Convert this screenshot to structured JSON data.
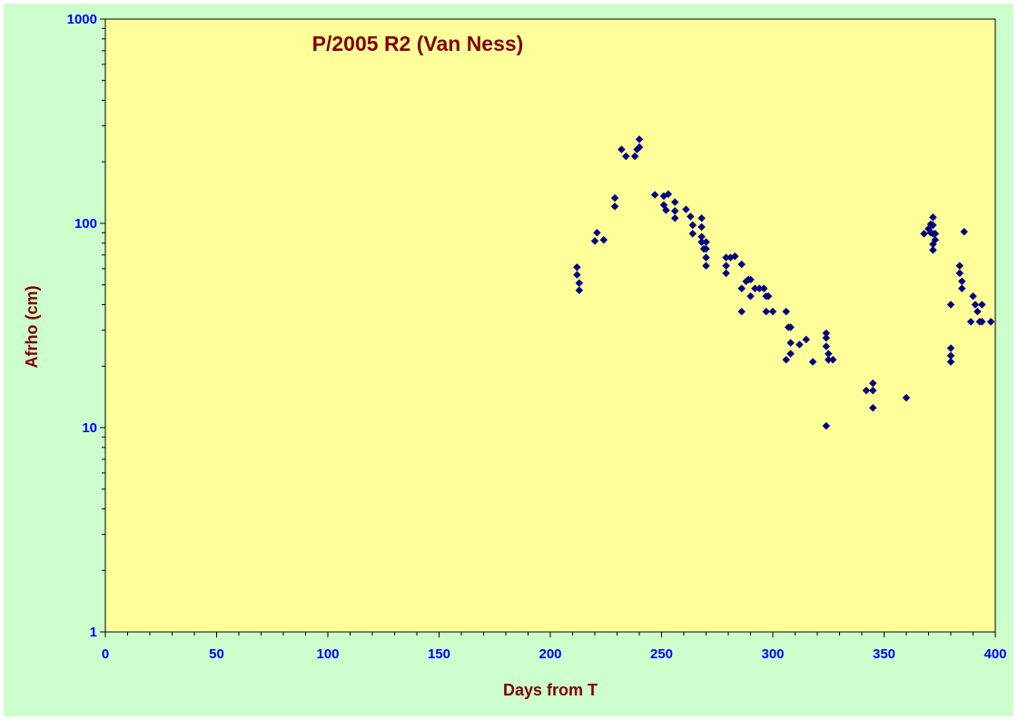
{
  "chart_data": {
    "type": "scatter",
    "title": "P/2005 R2 (Van Ness)",
    "xlabel": "Days from T",
    "ylabel": "Afrho (cm)",
    "xlim": [
      0,
      400
    ],
    "ylim": [
      1,
      1000
    ],
    "yscale": "log",
    "x_ticks": [
      0,
      50,
      100,
      150,
      200,
      250,
      300,
      350,
      400
    ],
    "x_tick_labels": [
      "0",
      "50",
      "100",
      "150",
      "200",
      "250",
      "300",
      "350",
      "400"
    ],
    "y_ticks": [
      1,
      10,
      100,
      1000
    ],
    "y_tick_labels": [
      "1",
      "10",
      "100",
      "1000"
    ],
    "grid": false,
    "legend": "none",
    "colors": {
      "plot_bg": "#ffff99",
      "chart_bg": "#ccffcc",
      "marker": "#000080",
      "title": "#800000",
      "ticks": "#0000ff"
    },
    "series": [
      {
        "marker": "diamond",
        "points": [
          [
            212,
            61
          ],
          [
            212,
            56
          ],
          [
            213,
            51
          ],
          [
            213,
            47
          ],
          [
            220,
            82
          ],
          [
            221,
            90
          ],
          [
            224,
            83
          ],
          [
            229,
            121
          ],
          [
            229,
            133
          ],
          [
            232,
            230
          ],
          [
            234,
            213
          ],
          [
            238,
            213
          ],
          [
            239,
            230
          ],
          [
            240,
            236
          ],
          [
            240,
            258
          ],
          [
            247,
            138
          ],
          [
            251,
            136
          ],
          [
            251,
            123
          ],
          [
            252,
            116
          ],
          [
            253,
            139
          ],
          [
            256,
            127
          ],
          [
            256,
            115
          ],
          [
            256,
            106
          ],
          [
            261,
            117
          ],
          [
            263,
            108
          ],
          [
            264,
            98
          ],
          [
            264,
            89
          ],
          [
            268,
            106
          ],
          [
            268,
            96
          ],
          [
            268,
            86
          ],
          [
            268,
            81
          ],
          [
            269,
            75
          ],
          [
            270,
            81
          ],
          [
            270,
            75
          ],
          [
            270,
            68
          ],
          [
            270,
            62
          ],
          [
            279,
            68
          ],
          [
            279,
            62
          ],
          [
            279,
            57
          ],
          [
            281,
            68
          ],
          [
            283,
            69
          ],
          [
            286,
            63
          ],
          [
            286,
            48
          ],
          [
            286,
            37
          ],
          [
            288,
            52
          ],
          [
            289,
            53
          ],
          [
            290,
            53
          ],
          [
            290,
            44
          ],
          [
            292,
            48
          ],
          [
            294,
            48
          ],
          [
            296,
            48
          ],
          [
            297,
            44
          ],
          [
            298,
            44
          ],
          [
            297,
            37
          ],
          [
            300,
            37
          ],
          [
            306,
            37
          ],
          [
            307,
            31
          ],
          [
            308,
            31
          ],
          [
            308,
            26
          ],
          [
            308,
            23
          ],
          [
            306,
            21.5
          ],
          [
            312,
            25.5
          ],
          [
            315,
            27
          ],
          [
            318,
            21
          ],
          [
            324,
            29
          ],
          [
            324,
            27.5
          ],
          [
            324,
            25
          ],
          [
            325,
            23
          ],
          [
            325,
            21.5
          ],
          [
            327,
            21.5
          ],
          [
            324,
            10.2
          ],
          [
            342,
            15.2
          ],
          [
            345,
            16.5
          ],
          [
            345,
            15.2
          ],
          [
            345,
            12.5
          ],
          [
            360,
            14
          ],
          [
            368,
            89
          ],
          [
            370,
            94
          ],
          [
            371,
            99
          ],
          [
            371,
            90
          ],
          [
            372,
            107
          ],
          [
            372,
            98
          ],
          [
            372,
            89
          ],
          [
            372,
            79
          ],
          [
            372,
            74
          ],
          [
            373,
            83
          ],
          [
            373,
            89
          ],
          [
            380,
            40
          ],
          [
            380,
            24.5
          ],
          [
            380,
            22.5
          ],
          [
            380,
            21
          ],
          [
            384,
            62
          ],
          [
            384,
            57
          ],
          [
            385,
            52
          ],
          [
            385,
            48
          ],
          [
            386,
            91
          ],
          [
            389,
            33
          ],
          [
            390,
            44
          ],
          [
            391,
            40
          ],
          [
            392,
            37
          ],
          [
            393,
            33
          ],
          [
            394,
            40
          ],
          [
            394,
            33
          ],
          [
            398,
            33
          ]
        ]
      }
    ]
  }
}
